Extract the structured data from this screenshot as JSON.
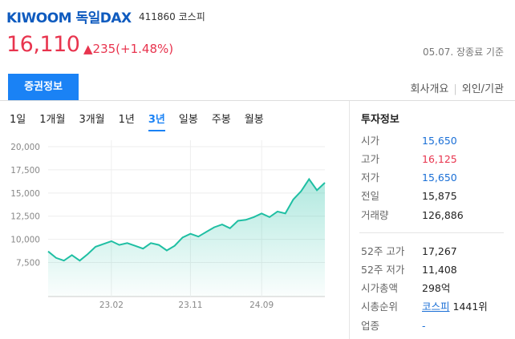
{
  "header": {
    "name": "KIWOOM 독일DAX",
    "code": "411860",
    "market": "코스피",
    "price": "16,110",
    "change": "▲235(+1.48%)",
    "asof": "05.07. 장종료 기준"
  },
  "tabs": {
    "active": "증권정보",
    "links": [
      "회사개요",
      "외인/기관"
    ]
  },
  "periods": [
    "1일",
    "1개월",
    "3개월",
    "1년",
    "3년",
    "일봉",
    "주봉",
    "월봉"
  ],
  "chart_data": {
    "type": "line",
    "color": "#1fbfa3",
    "categories": [
      null,
      null,
      null,
      null,
      null,
      null,
      null,
      null,
      "23.02",
      null,
      null,
      null,
      null,
      null,
      null,
      null,
      null,
      null,
      "23.11",
      null,
      null,
      null,
      null,
      null,
      null,
      null,
      null,
      "24.09",
      null,
      null,
      null,
      null,
      null,
      null,
      null,
      null
    ],
    "values": [
      8700,
      8000,
      7700,
      8300,
      7700,
      8400,
      9200,
      9500,
      9800,
      9400,
      9600,
      9300,
      9000,
      9600,
      9400,
      8800,
      9300,
      10200,
      10600,
      10300,
      10800,
      11300,
      11600,
      11200,
      12000,
      12100,
      12400,
      12800,
      12400,
      13000,
      12800,
      14300,
      15200,
      16500,
      15300,
      16110
    ],
    "ylim": [
      4000,
      20000
    ],
    "yticks": [
      {
        "value": 7500,
        "label": "7,500"
      },
      {
        "value": 10000,
        "label": "10,000"
      },
      {
        "value": 12500,
        "label": "12,500"
      },
      {
        "value": 15000,
        "label": "15,000"
      },
      {
        "value": 17500,
        "label": "17,500"
      },
      {
        "value": 20000,
        "label": "20,000"
      }
    ],
    "grid": true
  },
  "info": {
    "title": "투자정보",
    "rows": [
      [
        "시가",
        "15,650"
      ],
      [
        "고가",
        "16,125"
      ],
      [
        "저가",
        "15,650"
      ],
      [
        "전일",
        "15,875"
      ],
      [
        "거래량",
        "126,886"
      ]
    ],
    "rows2": [
      [
        "52주 고가",
        "17,267"
      ],
      [
        "52주 저가",
        "11,408"
      ],
      [
        "시가총액",
        "298억"
      ],
      [
        "시총순위",
        "코스피",
        "1441위"
      ],
      [
        "업종",
        "-"
      ]
    ]
  }
}
